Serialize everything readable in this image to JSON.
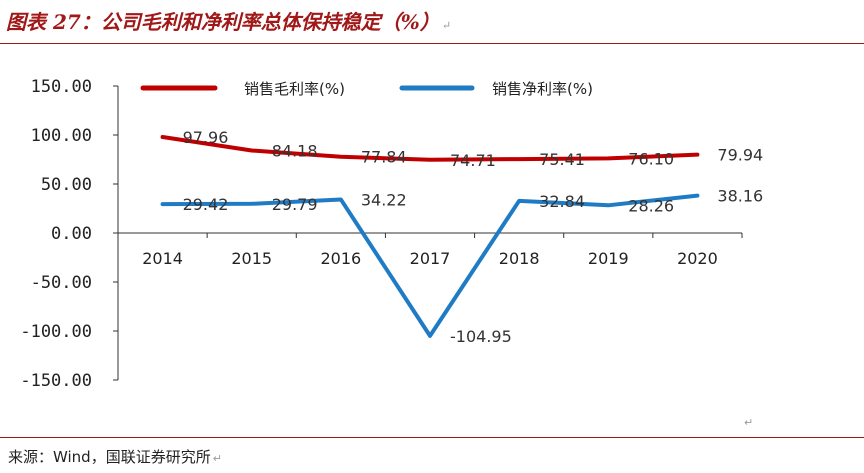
{
  "title": "图表 27：公司毛利和净利率总体保持稳定（%）",
  "source": "来源：Wind，国联证券研究所",
  "return_mark": "↵",
  "colors": {
    "gross": "#c00000",
    "net": "#1f7bc4",
    "accent": "#a01818"
  },
  "chart_data": {
    "type": "line",
    "categories": [
      "2014",
      "2015",
      "2016",
      "2017",
      "2018",
      "2019",
      "2020"
    ],
    "series": [
      {
        "name": "销售毛利率(%)",
        "values": [
          97.96,
          84.18,
          77.84,
          74.71,
          75.41,
          76.1,
          79.94
        ],
        "labels": [
          "97.96",
          "84.18",
          "77.84",
          "74.71",
          "75.41",
          "76.10",
          "79.94"
        ]
      },
      {
        "name": "销售净利率(%)",
        "values": [
          29.42,
          29.79,
          34.22,
          -104.95,
          32.84,
          28.26,
          38.16
        ],
        "labels": [
          "29.42",
          "29.79",
          "34.22",
          "-104.95",
          "32.84",
          "28.26",
          "38.16"
        ]
      }
    ],
    "yticks": [
      "150.00",
      "100.00",
      "50.00",
      "0.00",
      "-50.00",
      "-100.00",
      "-150.00"
    ],
    "ylim": [
      -150,
      150
    ],
    "legend": "top",
    "grid": false
  }
}
